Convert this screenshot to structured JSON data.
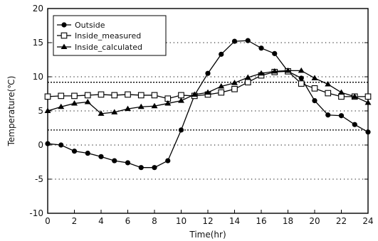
{
  "chart_data": {
    "type": "line",
    "xlabel": "Time(hr)",
    "ylabel": "Temperature(℃)",
    "xlim": [
      0,
      24
    ],
    "ylim": [
      -10,
      20
    ],
    "xticks": [
      0,
      2,
      4,
      6,
      8,
      10,
      12,
      14,
      16,
      18,
      20,
      22,
      24
    ],
    "yticks": [
      -10,
      -5,
      0,
      5,
      10,
      15,
      20
    ],
    "xtick_labels": [
      "0",
      "2",
      "4",
      "6",
      "8",
      "10",
      "12",
      "14",
      "16",
      "18",
      "20",
      "22",
      "24"
    ],
    "ytick_labels": [
      "-10",
      "-5",
      "0",
      "5",
      "10",
      "15",
      "20"
    ],
    "grid": "horizontal dotted",
    "legend_position": "top-left",
    "reference_lines": [
      9.2,
      2.2
    ],
    "x": [
      0,
      1,
      2,
      3,
      4,
      5,
      6,
      7,
      8,
      9,
      10,
      11,
      12,
      13,
      14,
      15,
      16,
      17,
      18,
      19,
      20,
      21,
      22,
      23,
      24
    ],
    "series": [
      {
        "name": "Outside",
        "marker": "filled-circle",
        "values": [
          0.2,
          0.0,
          -0.9,
          -1.2,
          -1.7,
          -2.3,
          -2.6,
          -3.3,
          -3.3,
          -2.3,
          2.2,
          7.3,
          10.5,
          13.3,
          15.2,
          15.3,
          14.2,
          13.4,
          10.8,
          9.8,
          6.5,
          4.4,
          4.3,
          3.0,
          1.9
        ]
      },
      {
        "name": "Inside_measured",
        "marker": "open-square",
        "values": [
          7.1,
          7.2,
          7.2,
          7.3,
          7.4,
          7.3,
          7.4,
          7.3,
          7.3,
          6.8,
          7.3,
          7.2,
          7.4,
          7.7,
          8.2,
          9.2,
          10.2,
          10.7,
          10.8,
          9.0,
          8.3,
          7.6,
          7.1,
          7.1,
          7.1
        ]
      },
      {
        "name": "Inside_calculated",
        "marker": "filled-triangle",
        "values": [
          5.0,
          5.6,
          6.1,
          6.3,
          4.6,
          4.8,
          5.3,
          5.6,
          5.7,
          6.1,
          6.5,
          7.4,
          7.7,
          8.6,
          9.1,
          9.9,
          10.5,
          10.8,
          10.9,
          10.9,
          9.8,
          8.9,
          7.7,
          7.1,
          6.2
        ]
      }
    ]
  }
}
